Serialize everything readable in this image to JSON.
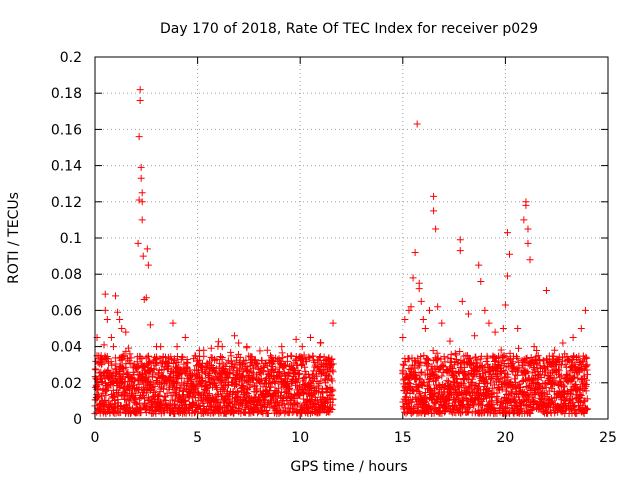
{
  "chart_data": {
    "type": "scatter",
    "title": "Day 170 of 2018, Rate Of TEC Index for receiver p029",
    "xlabel": "GPS time / hours",
    "ylabel": "ROTI / TECUs",
    "xlim": [
      0,
      25
    ],
    "ylim": [
      0,
      0.2
    ],
    "xticks": [
      0,
      5,
      10,
      15,
      20,
      25
    ],
    "yticks": [
      0,
      0.02,
      0.04,
      0.06,
      0.08,
      0.1,
      0.12,
      0.14,
      0.16,
      0.18,
      0.2
    ],
    "xtick_labels": [
      "0",
      "5",
      "10",
      "15",
      "20",
      "25"
    ],
    "ytick_labels": [
      "0",
      "0.02",
      "0.04",
      "0.06",
      "0.08",
      "0.1",
      "0.12",
      "0.14",
      "0.16",
      "0.18",
      "0.2"
    ],
    "grid": true,
    "marker": "+",
    "color": "#ff0000",
    "series": [
      {
        "name": "ROTI",
        "x": [
          0.1,
          0.3,
          0.5,
          0.5,
          0.6,
          0.8,
          0.9,
          1.0,
          1.1,
          1.2,
          1.3,
          1.5,
          1.7,
          2.1,
          2.15,
          2.15,
          2.2,
          2.2,
          2.25,
          2.25,
          2.3,
          2.3,
          2.3,
          2.35,
          2.4,
          2.5,
          2.55,
          2.6,
          2.7,
          3.0,
          3.2,
          3.8,
          4.0,
          4.4,
          5.3,
          6.2,
          6.8,
          7.0,
          7.4,
          8.4,
          9.1,
          9.8,
          10.1,
          10.5,
          11.0,
          11.6,
          15.0,
          15.1,
          15.3,
          15.4,
          15.5,
          15.6,
          15.7,
          15.8,
          15.8,
          15.9,
          16.0,
          16.1,
          16.3,
          16.5,
          16.5,
          16.6,
          16.7,
          16.9,
          17.3,
          17.8,
          17.8,
          17.9,
          18.2,
          18.5,
          18.7,
          18.8,
          19.0,
          19.2,
          19.5,
          19.9,
          20.0,
          20.1,
          20.1,
          20.2,
          20.6,
          20.9,
          21.0,
          21.0,
          21.1,
          21.1,
          21.2,
          21.4,
          21.6,
          22.0,
          22.4,
          22.8,
          23.3,
          23.7,
          23.9
        ],
        "y": [
          0.045,
          0.035,
          0.06,
          0.069,
          0.055,
          0.045,
          0.04,
          0.068,
          0.059,
          0.055,
          0.05,
          0.048,
          0.036,
          0.097,
          0.121,
          0.156,
          0.182,
          0.176,
          0.139,
          0.133,
          0.125,
          0.12,
          0.11,
          0.09,
          0.066,
          0.067,
          0.094,
          0.085,
          0.052,
          0.04,
          0.04,
          0.053,
          0.04,
          0.045,
          0.038,
          0.04,
          0.046,
          0.042,
          0.04,
          0.038,
          0.04,
          0.044,
          0.04,
          0.045,
          0.042,
          0.053,
          0.045,
          0.055,
          0.06,
          0.062,
          0.078,
          0.092,
          0.163,
          0.072,
          0.075,
          0.065,
          0.055,
          0.05,
          0.06,
          0.123,
          0.115,
          0.105,
          0.062,
          0.053,
          0.043,
          0.099,
          0.093,
          0.065,
          0.058,
          0.046,
          0.085,
          0.076,
          0.06,
          0.053,
          0.048,
          0.05,
          0.063,
          0.079,
          0.103,
          0.091,
          0.05,
          0.11,
          0.118,
          0.12,
          0.105,
          0.097,
          0.088,
          0.04,
          0.035,
          0.071,
          0.038,
          0.042,
          0.045,
          0.05,
          0.06
        ],
        "dense_bands": [
          {
            "x_range": [
              0,
              11.6
            ],
            "y_range": [
              0.003,
              0.035
            ]
          },
          {
            "x_range": [
              15,
              24
            ],
            "y_range": [
              0.003,
              0.035
            ]
          }
        ]
      }
    ]
  }
}
